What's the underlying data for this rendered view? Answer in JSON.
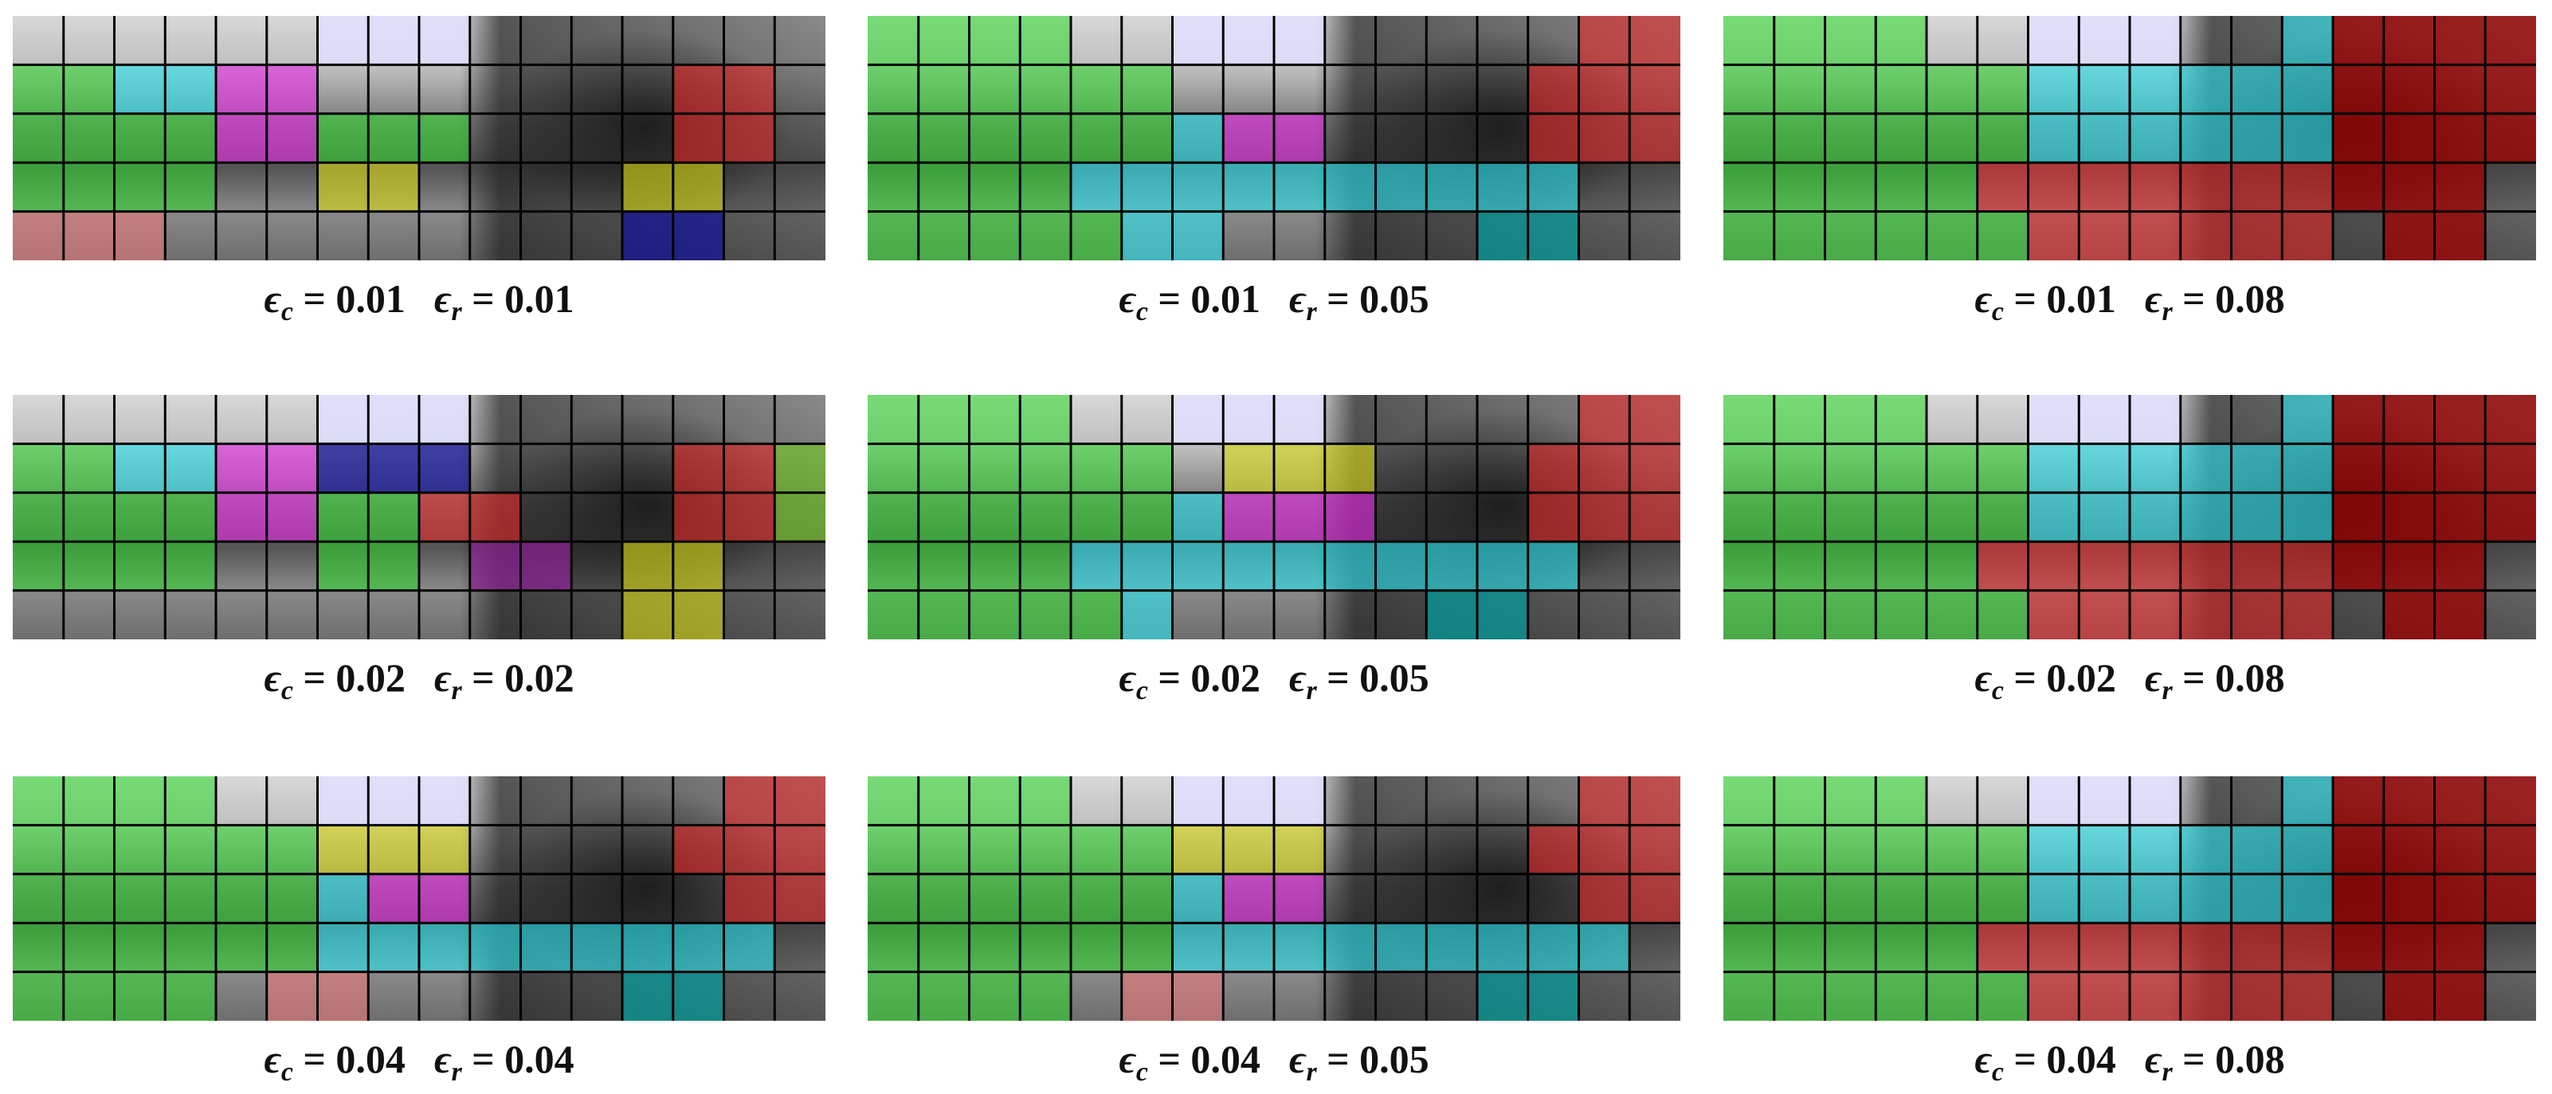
{
  "panels": [
    {
      "caption": [
        {
          "symbol": "ϵ",
          "subscript": "c",
          "operator": "=",
          "value": "0.01"
        },
        {
          "symbol": "ϵ",
          "subscript": "r",
          "operator": "=",
          "value": "0.01"
        }
      ]
    },
    {
      "caption": [
        {
          "symbol": "ϵ",
          "subscript": "c",
          "operator": "=",
          "value": "0.01"
        },
        {
          "symbol": "ϵ",
          "subscript": "r",
          "operator": "=",
          "value": "0.05"
        }
      ]
    },
    {
      "caption": [
        {
          "symbol": "ϵ",
          "subscript": "c",
          "operator": "=",
          "value": "0.01"
        },
        {
          "symbol": "ϵ",
          "subscript": "r",
          "operator": "=",
          "value": "0.08"
        }
      ]
    },
    {
      "caption": [
        {
          "symbol": "ϵ",
          "subscript": "c",
          "operator": "=",
          "value": "0.02"
        },
        {
          "symbol": "ϵ",
          "subscript": "r",
          "operator": "=",
          "value": "0.02"
        }
      ]
    },
    {
      "caption": [
        {
          "symbol": "ϵ",
          "subscript": "c",
          "operator": "=",
          "value": "0.02"
        },
        {
          "symbol": "ϵ",
          "subscript": "r",
          "operator": "=",
          "value": "0.05"
        }
      ]
    },
    {
      "caption": [
        {
          "symbol": "ϵ",
          "subscript": "c",
          "operator": "=",
          "value": "0.02"
        },
        {
          "symbol": "ϵ",
          "subscript": "r",
          "operator": "=",
          "value": "0.08"
        }
      ]
    },
    {
      "caption": [
        {
          "symbol": "ϵ",
          "subscript": "c",
          "operator": "=",
          "value": "0.04"
        },
        {
          "symbol": "ϵ",
          "subscript": "r",
          "operator": "=",
          "value": "0.04"
        }
      ]
    },
    {
      "caption": [
        {
          "symbol": "ϵ",
          "subscript": "c",
          "operator": "=",
          "value": "0.04"
        },
        {
          "symbol": "ϵ",
          "subscript": "r",
          "operator": "=",
          "value": "0.05"
        }
      ]
    },
    {
      "caption": [
        {
          "symbol": "ϵ",
          "subscript": "c",
          "operator": "=",
          "value": "0.04"
        },
        {
          "symbol": "ϵ",
          "subscript": "r",
          "operator": "=",
          "value": "0.08"
        }
      ]
    }
  ]
}
